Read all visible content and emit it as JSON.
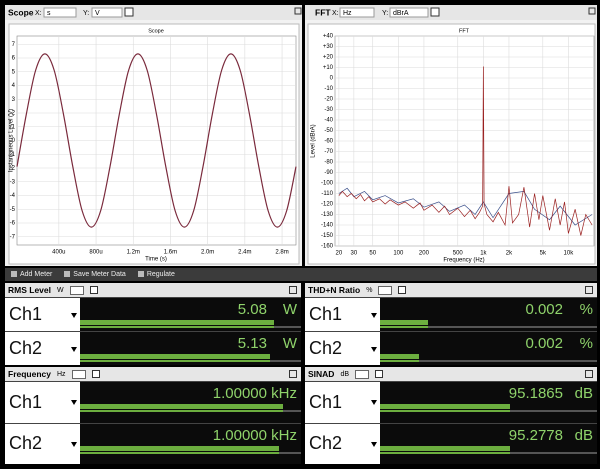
{
  "panels": {
    "scope": {
      "title": "Scope",
      "x_axis": "X:",
      "x_unit": "s",
      "y_axis": "Y:",
      "y_unit": "V"
    },
    "fft": {
      "title": "FFT",
      "x_axis": "X:",
      "x_unit": "Hz",
      "y_axis": "Y:",
      "y_unit": "dBrA"
    }
  },
  "chart_data": [
    {
      "type": "line",
      "title": "Scope",
      "x_label": "Time (s)",
      "y_label": "Instantaneous Level (V)",
      "xlim": [
        -5e-05,
        0.00295
      ],
      "ylim": [
        -7.6,
        7.6
      ],
      "grid": true,
      "xticks": [
        {
          "value": 0.0004,
          "label": "400u"
        },
        {
          "value": 0.0008,
          "label": "800u"
        },
        {
          "value": 0.0012,
          "label": "1.2m"
        },
        {
          "value": 0.0016,
          "label": "1.6m"
        },
        {
          "value": 0.002,
          "label": "2.0m"
        },
        {
          "value": 0.0024,
          "label": "2.4m"
        },
        {
          "value": 0.0028,
          "label": "2.8m"
        }
      ],
      "yticks": [
        7,
        6,
        5,
        4,
        3,
        2,
        1,
        0,
        -1,
        -2,
        -3,
        -4,
        -5,
        -6,
        -7
      ],
      "series": [
        {
          "color": "#7a2a3c",
          "x": [
            -5e-05,
            5e-05,
            0.00015,
            0.00025,
            0.00035,
            0.00045,
            0.00055,
            0.00065,
            0.00075,
            0.00085,
            0.00095,
            0.00105,
            0.00115,
            0.00125,
            0.00135,
            0.00145,
            0.00155,
            0.00165,
            0.00175,
            0.00185,
            0.00195,
            0.00205,
            0.00215,
            0.00225,
            0.00235,
            0.00245,
            0.00255,
            0.00265,
            0.00275,
            0.00285,
            0.00295
          ],
          "values": [
            -1.9,
            1.9,
            5.1,
            6.3,
            5.1,
            1.9,
            -1.9,
            -5.1,
            -6.3,
            -5.1,
            -1.9,
            1.9,
            5.1,
            6.3,
            5.1,
            1.9,
            -1.9,
            -5.1,
            -6.3,
            -5.1,
            -1.9,
            1.9,
            5.1,
            6.3,
            5.1,
            1.9,
            -1.9,
            -5.1,
            -6.3,
            -5.1,
            -1.9
          ]
        }
      ]
    },
    {
      "type": "line",
      "title": "FFT",
      "x_label": "Frequency (Hz)",
      "y_label": "Level (dBrA)",
      "xscale": "log",
      "xlim": [
        18,
        20000
      ],
      "ylim": [
        -160,
        40
      ],
      "grid": true,
      "xticks": [
        20,
        30,
        50,
        100,
        200,
        500,
        {
          "value": 1000,
          "label": "1k"
        },
        {
          "value": 2000,
          "label": "2k"
        },
        {
          "value": 5000,
          "label": "5k"
        },
        {
          "value": 10000,
          "label": "10k"
        }
      ],
      "yticks": [
        {
          "value": 40,
          "label": "+40"
        },
        {
          "value": 30,
          "label": "+30"
        },
        {
          "value": 20,
          "label": "+20"
        },
        {
          "value": 10,
          "label": "+10"
        },
        0,
        -10,
        -20,
        -30,
        -40,
        -50,
        -60,
        -70,
        -80,
        -90,
        -100,
        -110,
        -120,
        -130,
        -140,
        -150,
        -160
      ],
      "series": [
        {
          "color": "#3a4f8a",
          "x": [
            20,
            25,
            30,
            40,
            50,
            70,
            100,
            150,
            200,
            300,
            400,
            600,
            800,
            1000,
            1300,
            2000,
            3000,
            4000,
            6000,
            8000,
            12000,
            19000
          ],
          "values": [
            -110,
            -105,
            -113,
            -108,
            -116,
            -112,
            -119,
            -115,
            -123,
            -118,
            -127,
            -121,
            -130,
            -118,
            -133,
            -110,
            -108,
            -125,
            -135,
            -122,
            -140,
            -130
          ]
        },
        {
          "color": "#9a2020",
          "x": [
            20,
            22,
            25,
            28,
            32,
            36,
            40,
            45,
            50,
            60,
            70,
            80,
            100,
            120,
            150,
            180,
            200,
            250,
            300,
            350,
            400,
            500,
            600,
            700,
            800,
            900,
            980,
            1000,
            1020,
            1100,
            1300,
            1500,
            1800,
            2000,
            2200,
            2600,
            3000,
            3500,
            4000,
            4500,
            5000,
            6000,
            7000,
            8000,
            9000,
            10000,
            12000,
            14000,
            16000,
            19000
          ],
          "values": [
            -112,
            -108,
            -113,
            -110,
            -115,
            -111,
            -117,
            -113,
            -118,
            -115,
            -120,
            -116,
            -121,
            -118,
            -124,
            -119,
            -126,
            -121,
            -128,
            -122,
            -130,
            -124,
            -132,
            -126,
            -134,
            -128,
            -122,
            11,
            -120,
            -130,
            -137,
            -128,
            -140,
            -103,
            -138,
            -130,
            -104,
            -142,
            -110,
            -135,
            -112,
            -145,
            -115,
            -140,
            -118,
            -148,
            -125,
            -150,
            -130,
            -140
          ]
        }
      ]
    }
  ],
  "toolbar": {
    "add_meter": "Add Meter",
    "save_meter_data": "Save Meter Data",
    "regulate": "Regulate"
  },
  "meters": [
    {
      "title": "RMS Level",
      "unit": "W",
      "channels": [
        {
          "name": "Ch1",
          "value": "5.08",
          "unit": "W"
        },
        {
          "name": "Ch2",
          "value": "5.13",
          "unit": "W"
        }
      ]
    },
    {
      "title": "THD+N Ratio",
      "unit": "%",
      "channels": [
        {
          "name": "Ch1",
          "value": "0.002",
          "unit": "%"
        },
        {
          "name": "Ch2",
          "value": "0.002",
          "unit": "%"
        }
      ]
    },
    {
      "title": "Frequency",
      "unit": "Hz",
      "channels": [
        {
          "name": "Ch1",
          "value": "1.00000",
          "unit": "kHz"
        },
        {
          "name": "Ch2",
          "value": "1.00000",
          "unit": "kHz"
        }
      ]
    },
    {
      "title": "SINAD",
      "unit": "dB",
      "channels": [
        {
          "name": "Ch1",
          "value": "95.1865",
          "unit": "dB"
        },
        {
          "name": "Ch2",
          "value": "95.2778",
          "unit": "dB"
        }
      ]
    }
  ]
}
